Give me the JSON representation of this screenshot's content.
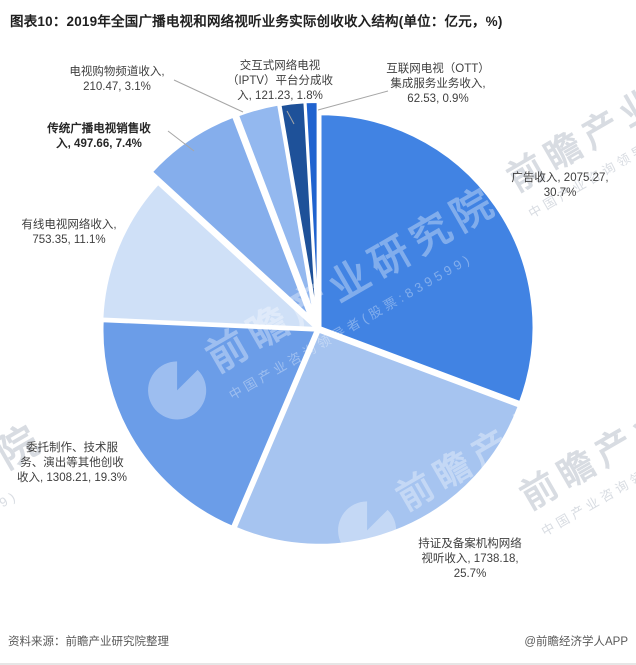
{
  "title": "图表10：2019年全国广播电视和网络视听业务实际创收收入结构(单位：亿元，%)",
  "source": "资料来源：前瞻产业研究院整理",
  "credit": "@前瞻经济学人APP",
  "watermark": {
    "brand": "前瞻产业研究院",
    "sub": "中国产业咨询领导者(股票:839599)"
  },
  "chart_data": {
    "type": "pie",
    "title": "2019年全国广播电视和网络视听业务实际创收收入结构",
    "unit": "亿元",
    "total_pct": 100.0,
    "start_angle_deg": 0,
    "direction": "clockwise",
    "legend_position": "none",
    "slices": [
      {
        "label": "广告收入",
        "value": 2075.27,
        "pct": 30.7,
        "color": "#4183E3",
        "emphasis": false,
        "label_lines": [
          "广告收入, 2075.27,",
          "30.7%"
        ]
      },
      {
        "label": "持证及备案机构网络视听收入",
        "value": 1738.18,
        "pct": 25.7,
        "color": "#A6C4F0",
        "emphasis": false,
        "label_lines": [
          "持证及备案机构网络",
          "视听收入, 1738.18,",
          "25.7%"
        ]
      },
      {
        "label": "委托制作、技术服务、演出等其他创收收入",
        "value": 1308.21,
        "pct": 19.3,
        "color": "#6B9DE8",
        "emphasis": false,
        "label_lines": [
          "委托制作、技术服",
          "务、演出等其他创收",
          "收入, 1308.21, 19.3%"
        ]
      },
      {
        "label": "有线电视网络收入",
        "value": 753.35,
        "pct": 11.1,
        "color": "#CFE0F7",
        "emphasis": false,
        "label_lines": [
          "有线电视网络收入,",
          "753.35, 11.1%"
        ]
      },
      {
        "label": "传统广播电视销售收入",
        "value": 497.66,
        "pct": 7.4,
        "color": "#85AEEC",
        "emphasis": true,
        "label_lines": [
          "传统广播电视销售收",
          "入, 497.66, 7.4%"
        ]
      },
      {
        "label": "电视购物频道收入",
        "value": 210.47,
        "pct": 3.1,
        "color": "#93B8EF",
        "emphasis": false,
        "label_lines": [
          "电视购物频道收入,",
          "210.47, 3.1%"
        ]
      },
      {
        "label": "交互式网络电视（IPTV）平台分成收入",
        "value": 121.23,
        "pct": 1.8,
        "color": "#1E5199",
        "emphasis": false,
        "label_lines": [
          "交互式网络电视",
          "（IPTV）平台分成收",
          "入, 121.23, 1.8%"
        ]
      },
      {
        "label": "互联网电视（OTT）集成服务业务收入",
        "value": 62.53,
        "pct": 0.9,
        "color": "#2063CF",
        "emphasis": false,
        "label_lines": [
          "互联网电视（OTT）",
          "集成服务业务收入,",
          "62.53, 0.9%"
        ]
      }
    ]
  }
}
